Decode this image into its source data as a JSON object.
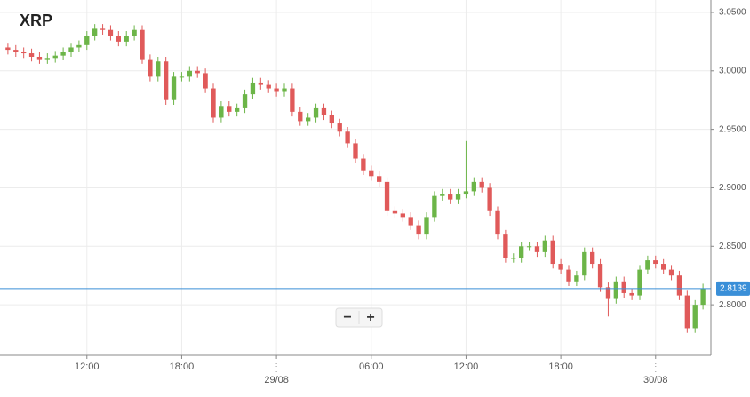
{
  "chart_data": {
    "type": "candlestick",
    "title": "XRP",
    "x": [
      7,
      7.5,
      8,
      8.5,
      9,
      9.5,
      10,
      10.5,
      11,
      11.5,
      12,
      12.5,
      13,
      13.5,
      14,
      14.5,
      15,
      15.5,
      16,
      16.5,
      17,
      17.5,
      18,
      18.5,
      19,
      19.5,
      20,
      20.5,
      21,
      21.5,
      22,
      22.5,
      23,
      23.5,
      24,
      24.5,
      25,
      25.5,
      26,
      26.5,
      27,
      27.5,
      28,
      28.5,
      29,
      29.5,
      30,
      30.5,
      31,
      31.5,
      32,
      32.5,
      33,
      33.5,
      34,
      34.5,
      35,
      35.5,
      36,
      36.5,
      37,
      37.5,
      38,
      38.5,
      39,
      39.5,
      40,
      40.5,
      41,
      41.5,
      42,
      42.5,
      43,
      43.5,
      44,
      44.5,
      45,
      45.5,
      46,
      46.5,
      47,
      47.5,
      48,
      48.5,
      49,
      49.5,
      50,
      50.5,
      51
    ],
    "open": [
      3.02,
      3.018,
      3.016,
      3.015,
      3.012,
      3.01,
      3.011,
      3.013,
      3.016,
      3.02,
      3.022,
      3.03,
      3.036,
      3.035,
      3.03,
      3.025,
      3.03,
      3.035,
      3.01,
      2.995,
      3.008,
      2.975,
      2.995,
      2.995,
      3.0,
      2.998,
      2.985,
      2.96,
      2.97,
      2.965,
      2.968,
      2.98,
      2.99,
      2.988,
      2.985,
      2.982,
      2.985,
      2.965,
      2.957,
      2.96,
      2.968,
      2.962,
      2.955,
      2.948,
      2.938,
      2.925,
      2.915,
      2.91,
      2.905,
      2.88,
      2.878,
      2.875,
      2.868,
      2.86,
      2.875,
      2.893,
      2.895,
      2.89,
      2.895,
      2.897,
      2.905,
      2.9,
      2.88,
      2.86,
      2.84,
      2.84,
      2.85,
      2.85,
      2.845,
      2.855,
      2.835,
      2.83,
      2.82,
      2.825,
      2.845,
      2.835,
      2.815,
      2.805,
      2.82,
      2.81,
      2.808,
      2.83,
      2.838,
      2.835,
      2.83,
      2.825,
      2.808,
      2.78,
      2.8
    ],
    "high": [
      3.024,
      3.022,
      3.02,
      3.019,
      3.016,
      3.015,
      3.017,
      3.02,
      3.024,
      3.026,
      3.034,
      3.04,
      3.04,
      3.039,
      3.034,
      3.034,
      3.039,
      3.039,
      3.014,
      3.012,
      3.012,
      2.999,
      2.999,
      3.004,
      3.004,
      3.002,
      2.989,
      2.974,
      2.974,
      2.972,
      2.984,
      2.994,
      2.994,
      2.992,
      2.989,
      2.989,
      2.989,
      2.969,
      2.964,
      2.972,
      2.972,
      2.966,
      2.959,
      2.952,
      2.942,
      2.929,
      2.919,
      2.914,
      2.909,
      2.884,
      2.882,
      2.879,
      2.872,
      2.879,
      2.897,
      2.899,
      2.899,
      2.899,
      2.94,
      2.909,
      2.909,
      2.904,
      2.884,
      2.864,
      2.844,
      2.854,
      2.854,
      2.854,
      2.859,
      2.859,
      2.839,
      2.834,
      2.829,
      2.849,
      2.849,
      2.839,
      2.819,
      2.824,
      2.824,
      2.814,
      2.834,
      2.842,
      2.842,
      2.839,
      2.834,
      2.829,
      2.812,
      2.804,
      2.818
    ],
    "low": [
      3.014,
      3.012,
      3.011,
      3.008,
      3.006,
      3.006,
      3.007,
      3.009,
      3.012,
      3.016,
      3.018,
      3.026,
      3.031,
      3.026,
      3.021,
      3.021,
      3.026,
      3.006,
      2.991,
      2.991,
      2.971,
      2.971,
      2.991,
      2.991,
      2.994,
      2.981,
      2.956,
      2.956,
      2.961,
      2.961,
      2.964,
      2.976,
      2.984,
      2.981,
      2.978,
      2.978,
      2.961,
      2.953,
      2.953,
      2.956,
      2.958,
      2.951,
      2.944,
      2.934,
      2.921,
      2.911,
      2.906,
      2.901,
      2.876,
      2.874,
      2.871,
      2.864,
      2.856,
      2.856,
      2.871,
      2.889,
      2.886,
      2.886,
      2.891,
      2.893,
      2.896,
      2.876,
      2.856,
      2.836,
      2.836,
      2.836,
      2.846,
      2.841,
      2.841,
      2.831,
      2.826,
      2.816,
      2.816,
      2.821,
      2.831,
      2.811,
      2.79,
      2.801,
      2.806,
      2.804,
      2.804,
      2.826,
      2.831,
      2.826,
      2.821,
      2.804,
      2.776,
      2.776,
      2.796
    ],
    "close": [
      3.018,
      3.016,
      3.015,
      3.012,
      3.01,
      3.011,
      3.013,
      3.016,
      3.02,
      3.022,
      3.03,
      3.036,
      3.035,
      3.03,
      3.025,
      3.03,
      3.035,
      3.01,
      2.995,
      3.008,
      2.975,
      2.995,
      2.995,
      3.0,
      2.998,
      2.985,
      2.96,
      2.97,
      2.965,
      2.968,
      2.98,
      2.99,
      2.988,
      2.985,
      2.982,
      2.985,
      2.965,
      2.957,
      2.96,
      2.968,
      2.962,
      2.955,
      2.948,
      2.938,
      2.925,
      2.915,
      2.91,
      2.905,
      2.88,
      2.878,
      2.875,
      2.868,
      2.86,
      2.875,
      2.893,
      2.895,
      2.89,
      2.895,
      2.897,
      2.905,
      2.9,
      2.88,
      2.86,
      2.84,
      2.84,
      2.85,
      2.85,
      2.845,
      2.855,
      2.835,
      2.83,
      2.82,
      2.825,
      2.845,
      2.835,
      2.815,
      2.805,
      2.82,
      2.81,
      2.808,
      2.83,
      2.838,
      2.835,
      2.83,
      2.825,
      2.808,
      2.78,
      2.8,
      2.8139
    ],
    "up_color": "#6cb548",
    "down_color": "#e05a5a",
    "xlim": [
      6.5,
      51.5
    ],
    "xticks": [
      {
        "value": 12,
        "label": "12:00"
      },
      {
        "value": 18,
        "label": "18:00"
      },
      {
        "value": 24,
        "label": "29/08"
      },
      {
        "value": 30,
        "label": "06:00"
      },
      {
        "value": 36,
        "label": "12:00"
      },
      {
        "value": 42,
        "label": "18:00"
      },
      {
        "value": 48,
        "label": "30/08"
      }
    ],
    "ylim": [
      2.7568,
      3.0606
    ],
    "yticks": [
      {
        "value": 2.8,
        "label": "2.8000"
      },
      {
        "value": 2.85,
        "label": "2.8500"
      },
      {
        "value": 2.9,
        "label": "2.9000"
      },
      {
        "value": 2.95,
        "label": "2.9500"
      },
      {
        "value": 3.0,
        "label": "3.0000"
      },
      {
        "value": 3.05,
        "label": "3.0500"
      }
    ],
    "y_axis_side": "right",
    "grid": true,
    "current_price": 2.8139,
    "current_price_color": "#3a8fd8",
    "zoom_out": "−",
    "zoom_in": "+"
  }
}
